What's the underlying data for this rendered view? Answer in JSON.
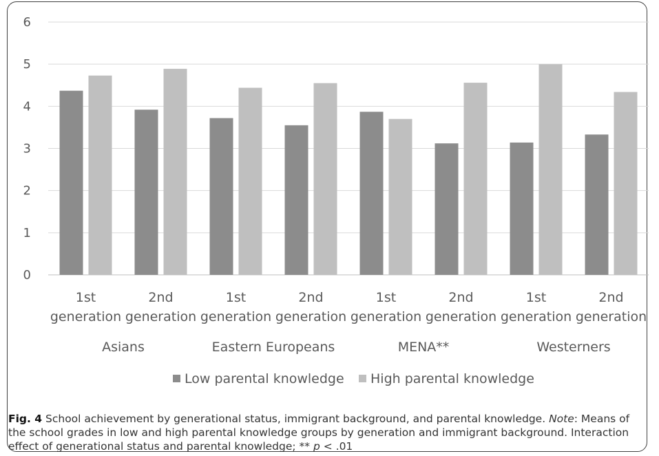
{
  "chart_data": {
    "type": "bar",
    "categories": [
      {
        "generation": [
          "1st",
          "generation"
        ],
        "group": "Asians"
      },
      {
        "generation": [
          "2nd",
          "generation"
        ],
        "group": "Asians"
      },
      {
        "generation": [
          "1st",
          "generation"
        ],
        "group": "Eastern Europeans"
      },
      {
        "generation": [
          "2nd",
          "generation"
        ],
        "group": "Eastern Europeans"
      },
      {
        "generation": [
          "1st",
          "generation"
        ],
        "group": "MENA**"
      },
      {
        "generation": [
          "2nd",
          "generation"
        ],
        "group": "MENA**"
      },
      {
        "generation": [
          "1st",
          "generation"
        ],
        "group": "Westerners"
      },
      {
        "generation": [
          "2nd",
          "generation"
        ],
        "group": "Westerners"
      }
    ],
    "groups": [
      "Asians",
      "Eastern Europeans",
      "MENA**",
      "Westerners"
    ],
    "series": [
      {
        "name": "Low parental knowledge",
        "color": "#8c8c8c",
        "values": [
          4.37,
          3.92,
          3.72,
          3.55,
          3.87,
          3.12,
          3.14,
          3.33
        ]
      },
      {
        "name": "High parental knowledge",
        "color": "#bfbfbf",
        "values": [
          4.73,
          4.89,
          4.44,
          4.55,
          3.7,
          4.56,
          5.0,
          4.34
        ]
      }
    ],
    "ylim": [
      0,
      6
    ],
    "yticks": [
      0,
      1,
      2,
      3,
      4,
      5,
      6
    ],
    "grid": true,
    "legend": "bottom"
  },
  "caption": {
    "label": "Fig. 4",
    "text": " School achievement by generational status, immigrant background, and parental knowledge. ",
    "note_label": "Note",
    "note_text": ": Means of the school grades in low and high parental knowledge groups by generation and immigrant background. Interaction effect of generational status and parental knowledge; ** ",
    "p_symbol": "p",
    "p_text": " < .01"
  }
}
